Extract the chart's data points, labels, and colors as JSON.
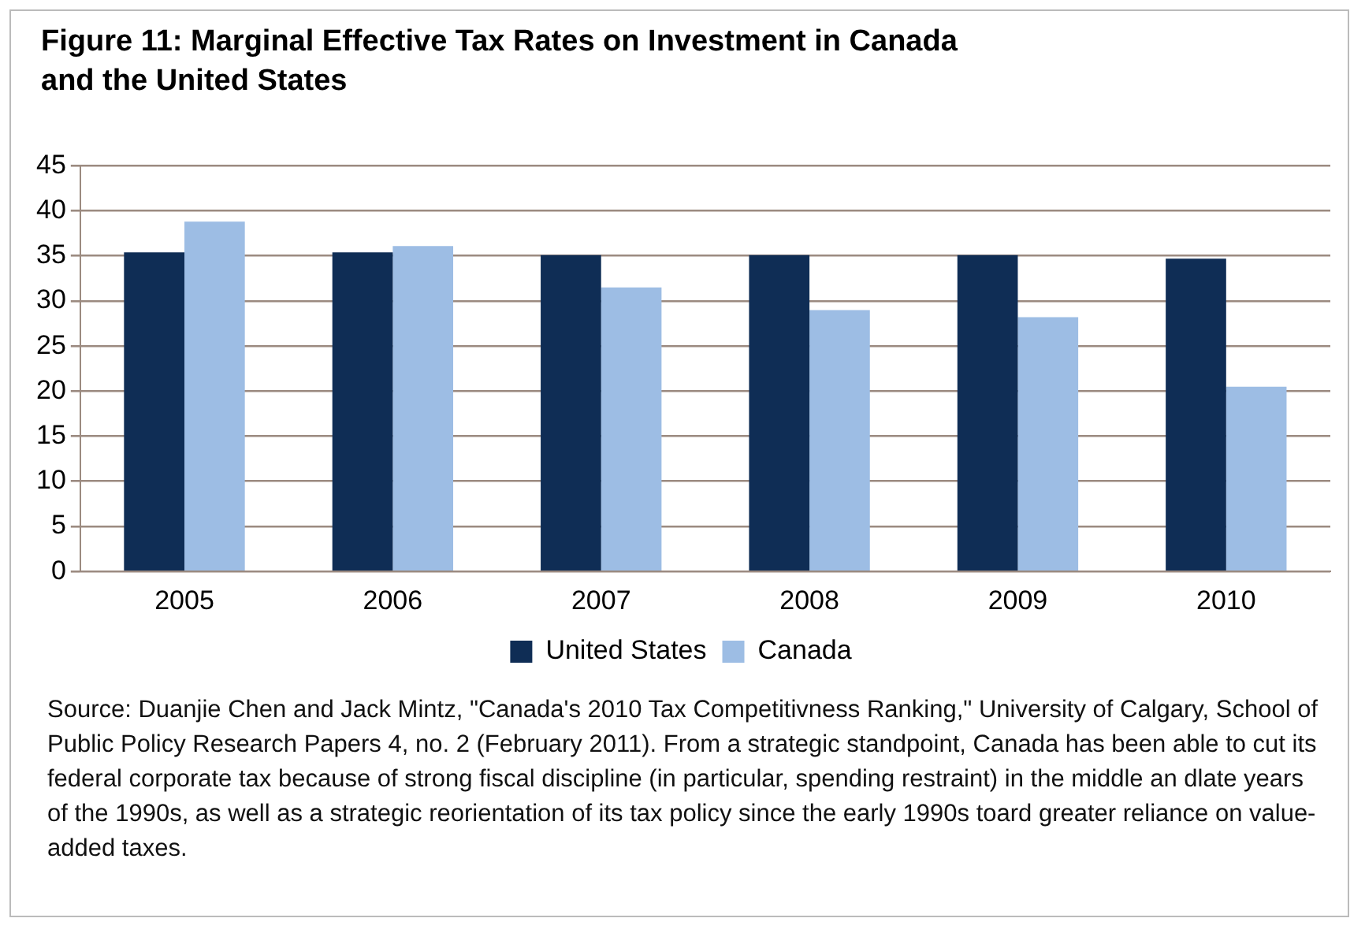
{
  "chart_data": {
    "type": "bar",
    "title": "Figure 11:  Marginal Effective Tax Rates on Investment in Canada and the United States",
    "categories": [
      "2005",
      "2006",
      "2007",
      "2008",
      "2009",
      "2010"
    ],
    "series": [
      {
        "name": "United States",
        "color": "#0f2d55",
        "values": [
          35.4,
          35.4,
          35.1,
          35.1,
          35.1,
          34.7
        ]
      },
      {
        "name": "Canada",
        "color": "#9dbde4",
        "values": [
          38.8,
          36.1,
          31.5,
          29.0,
          28.2,
          20.5
        ]
      }
    ],
    "ylim": [
      0,
      45
    ],
    "yticks": [
      0,
      5,
      10,
      15,
      20,
      25,
      30,
      35,
      40,
      45
    ],
    "grid": "y",
    "legend": "bottom",
    "annotations": [
      "Source:  Duanjie Chen and Jack Mintz, \"Canada's 2010 Tax Competitivness Ranking,\"  University of Calgary, School of Public Policy Research Papers 4, no. 2 (February 2011).  From a strategic standpoint, Canada has been able to cut its federal corporate tax because of strong fiscal discipline (in particular, spending restraint) in the middle an dlate years of the 1990s, as well as a strategic reorientation of its tax policy since the early 1990s toard greater reliance on value-added taxes."
    ]
  }
}
